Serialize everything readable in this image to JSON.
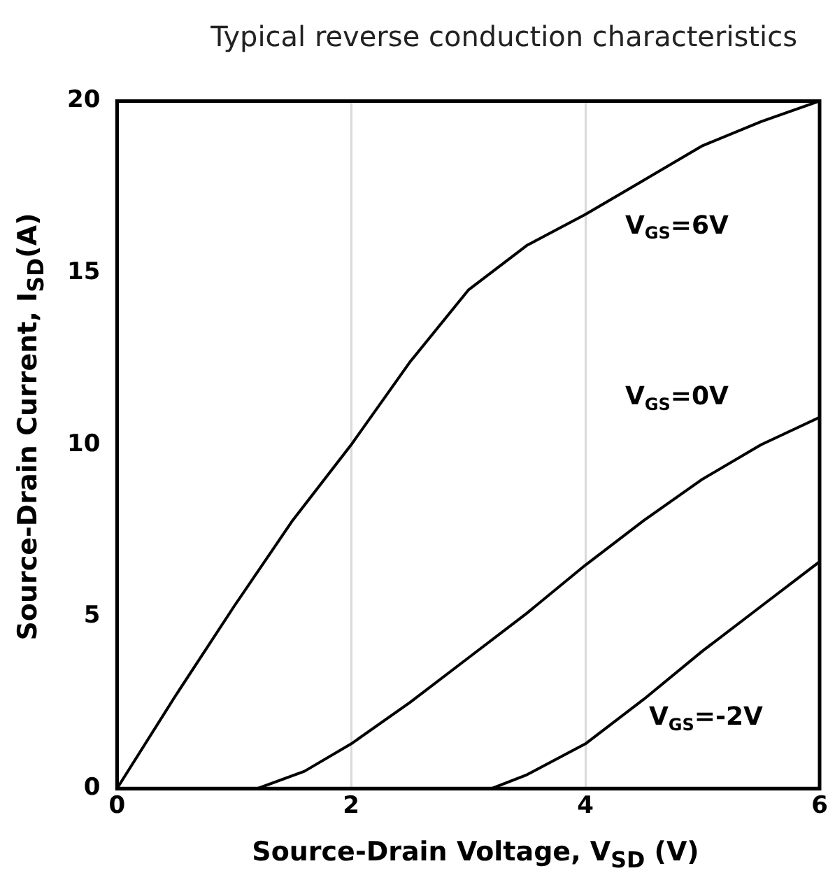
{
  "chart_data": {
    "type": "line",
    "title": "Typical reverse conduction characteristics",
    "xlabel": "Source-Drain Voltage, V$_{SD}$ (V)",
    "ylabel": "Source-Drain Current, I$_{SD}$(A)",
    "xlim": [
      0,
      6
    ],
    "ylim": [
      0,
      20
    ],
    "xticks": [
      0,
      2,
      4,
      6
    ],
    "yticks": [
      0,
      5,
      10,
      15,
      20
    ],
    "grid": "x",
    "legend": false,
    "marker": "none",
    "line_style": "solid",
    "series": [
      {
        "name": "V$_{GS}$=6V",
        "color": "#000000",
        "x": [
          0,
          0.5,
          1,
          1.5,
          2,
          2.5,
          3,
          3.5,
          4,
          4.5,
          5,
          5.5,
          6
        ],
        "values": [
          0,
          2.7,
          5.3,
          7.8,
          10,
          12.4,
          14.5,
          15.8,
          16.7,
          17.7,
          18.7,
          19.4,
          20
        ]
      },
      {
        "name": "V$_{GS}$=0V",
        "color": "#000000",
        "x": [
          0,
          1.2,
          1.6,
          2,
          2.5,
          3,
          3.5,
          4,
          4.5,
          5,
          5.5,
          6
        ],
        "values": [
          0,
          0,
          0.5,
          1.3,
          2.5,
          3.8,
          5.1,
          6.5,
          7.8,
          9,
          10,
          10.8
        ]
      },
      {
        "name": "V$_{GS}$=-2V",
        "color": "#000000",
        "x": [
          0,
          3.2,
          3.5,
          4,
          4.5,
          5,
          5.5,
          6
        ],
        "values": [
          0,
          0,
          0.4,
          1.3,
          2.6,
          4,
          5.3,
          6.6
        ]
      }
    ]
  }
}
